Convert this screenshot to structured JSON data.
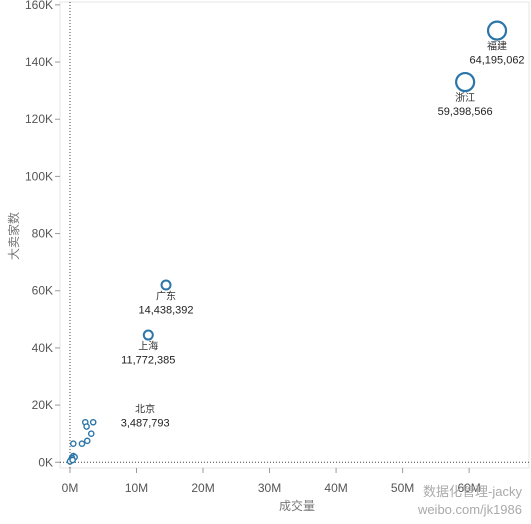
{
  "chart_data": {
    "type": "scatter",
    "title": "",
    "xlabel": "成交量",
    "ylabel": "大卖家数",
    "xlim": [
      -1500000,
      69000000
    ],
    "ylim": [
      -2000,
      161000
    ],
    "x_ticks": [
      0,
      10000000,
      20000000,
      30000000,
      40000000,
      50000000,
      60000000
    ],
    "x_tick_labels": [
      "0M",
      "10M",
      "20M",
      "30M",
      "40M",
      "50M",
      "60M"
    ],
    "y_ticks": [
      0,
      20000,
      40000,
      60000,
      80000,
      100000,
      120000,
      140000,
      160000
    ],
    "y_tick_labels": [
      "0K",
      "20K",
      "40K",
      "60K",
      "80K",
      "100K",
      "120K",
      "140K",
      "160K"
    ],
    "grid": false,
    "reference_lines": {
      "x": 0,
      "y": 0,
      "style": "dotted"
    },
    "marker_color": "#2b75a8",
    "points": [
      {
        "name": "福建",
        "label": "64,195,062",
        "x": 64195062,
        "y": 151000,
        "size": "large"
      },
      {
        "name": "浙江",
        "label": "59,398,566",
        "x": 59398566,
        "y": 133000,
        "size": "large"
      },
      {
        "name": "广东",
        "label": "14,438,392",
        "x": 14438392,
        "y": 62000,
        "size": "medium"
      },
      {
        "name": "上海",
        "label": "11,772,385",
        "x": 11772385,
        "y": 44500,
        "size": "medium"
      },
      {
        "name": "北京",
        "label": "3,487,793",
        "x": 3487793,
        "y": 14000,
        "size": "small"
      },
      {
        "x": 2300000,
        "y": 14000,
        "size": "small"
      },
      {
        "x": 2500000,
        "y": 12500,
        "size": "small"
      },
      {
        "x": 3200000,
        "y": 10000,
        "size": "small"
      },
      {
        "x": 2600000,
        "y": 7500,
        "size": "small"
      },
      {
        "x": 1800000,
        "y": 6500,
        "size": "small"
      },
      {
        "x": 500000,
        "y": 6500,
        "size": "small"
      },
      {
        "x": 500000,
        "y": 2200,
        "size": "small"
      },
      {
        "x": 700000,
        "y": 1800,
        "size": "small"
      },
      {
        "x": 300000,
        "y": 1500,
        "size": "small"
      },
      {
        "x": 200000,
        "y": 1000,
        "size": "small"
      },
      {
        "x": 100000,
        "y": 600,
        "size": "small"
      },
      {
        "x": 0,
        "y": 300,
        "size": "small"
      },
      {
        "x": 400000,
        "y": 800,
        "size": "small"
      }
    ]
  },
  "watermark": {
    "line1": "数据化管理-jacky",
    "line2": "weibo.com/jk1986"
  }
}
